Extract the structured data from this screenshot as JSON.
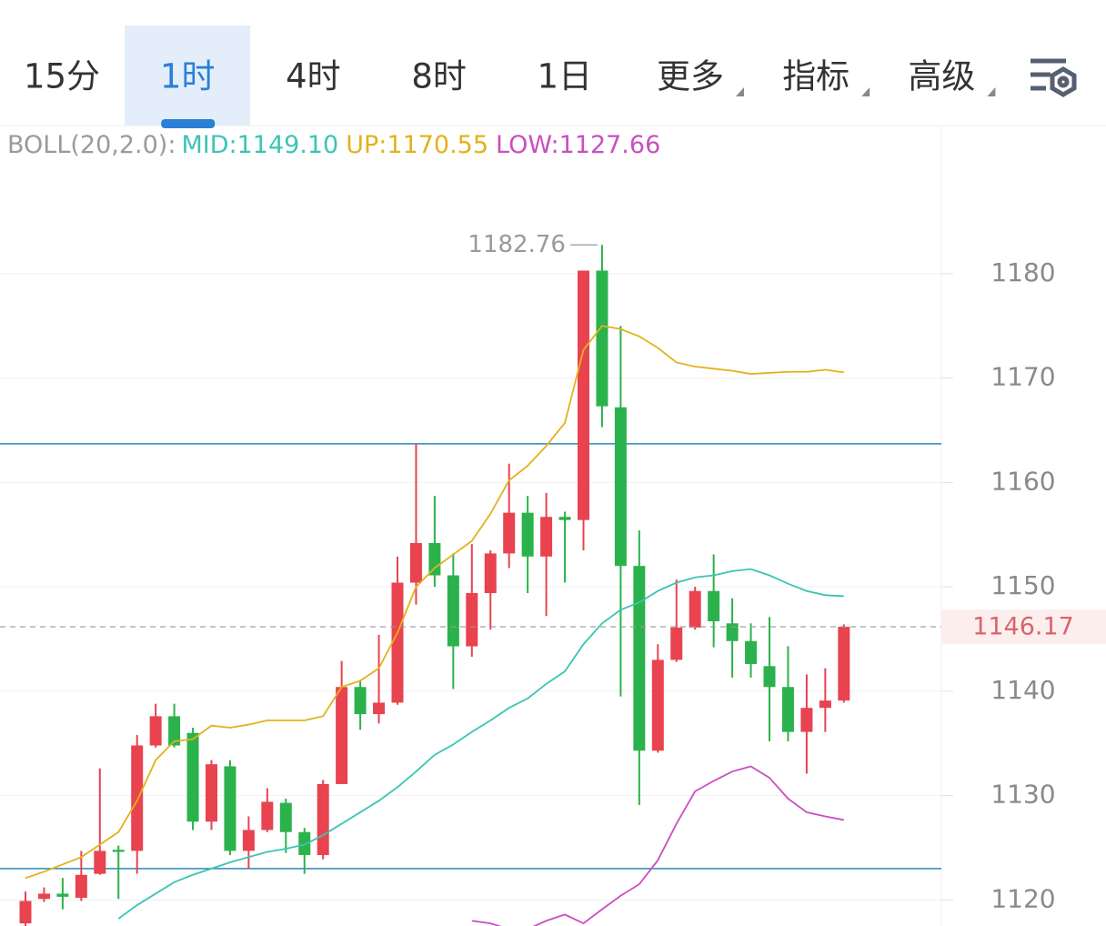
{
  "chart_data": {
    "type": "candlestick",
    "tabs": [
      {
        "label": "15分"
      },
      {
        "label": "1时"
      },
      {
        "label": "4时"
      },
      {
        "label": "8时"
      },
      {
        "label": "1日"
      },
      {
        "label": "更多",
        "dropdown": true
      },
      {
        "label": "指标",
        "dropdown": true
      },
      {
        "label": "高级",
        "dropdown": true
      }
    ],
    "active_tab": "1时",
    "indicator_label": "BOLL(20,2.0):",
    "up_color": "#e8434f",
    "down_color": "#2bb24c",
    "open": [
      1117.75,
      1120.1,
      1120.6,
      1120.2,
      1122.5,
      1124.8,
      1124.7,
      1134.8,
      1137.6,
      1136.0,
      1127.5,
      1132.8,
      1124.7,
      1126.7,
      1129.3,
      1126.5,
      1124.3,
      1131.1,
      1140.4,
      1137.8,
      1138.9,
      1150.4,
      1154.2,
      1151.1,
      1144.3,
      1149.4,
      1153.2,
      1157.1,
      1152.9,
      1156.7,
      1156.4,
      1180.3,
      1167.2,
      1152.0,
      1134.3,
      1143.0,
      1146.1,
      1149.6,
      1146.5,
      1144.8,
      1142.4,
      1140.4,
      1136.1,
      1138.4,
      1139.1
    ],
    "high": [
      1120.8,
      1121.2,
      1122.1,
      1124.7,
      1132.6,
      1125.2,
      1135.8,
      1138.8,
      1138.8,
      1136.5,
      1133.4,
      1133.4,
      1128.0,
      1130.7,
      1129.7,
      1126.9,
      1131.5,
      1142.9,
      1141.0,
      1145.4,
      1152.9,
      1163.7,
      1158.7,
      1153.2,
      1154.1,
      1153.5,
      1161.8,
      1158.7,
      1159.0,
      1157.2,
      1180.3,
      1182.76,
      1175.0,
      1155.4,
      1144.5,
      1150.7,
      1150.0,
      1153.1,
      1148.9,
      1146.5,
      1147.1,
      1144.3,
      1141.6,
      1142.2,
      1146.4
    ],
    "low": [
      1117.3,
      1119.8,
      1119.1,
      1119.9,
      1122.4,
      1120.1,
      1122.5,
      1134.6,
      1134.6,
      1126.7,
      1126.7,
      1124.3,
      1123.0,
      1126.5,
      1124.5,
      1122.5,
      1123.9,
      1131.1,
      1136.3,
      1136.9,
      1138.7,
      1148.3,
      1150.0,
      1140.2,
      1143.3,
      1145.9,
      1151.8,
      1149.4,
      1147.2,
      1150.4,
      1153.5,
      1165.3,
      1139.5,
      1129.1,
      1134.1,
      1142.8,
      1145.9,
      1144.2,
      1141.3,
      1141.3,
      1135.2,
      1135.2,
      1132.1,
      1136.1,
      1138.9
    ],
    "close": [
      1119.9,
      1120.6,
      1120.3,
      1122.4,
      1124.7,
      1124.6,
      1134.8,
      1137.6,
      1134.8,
      1127.5,
      1133.0,
      1124.7,
      1126.7,
      1129.4,
      1126.5,
      1124.3,
      1131.1,
      1140.4,
      1137.8,
      1138.9,
      1150.4,
      1154.2,
      1151.1,
      1144.3,
      1149.4,
      1153.2,
      1157.1,
      1152.9,
      1156.7,
      1156.4,
      1180.3,
      1167.3,
      1152.0,
      1134.3,
      1143.0,
      1146.1,
      1149.6,
      1146.7,
      1144.8,
      1142.6,
      1140.4,
      1136.1,
      1138.4,
      1139.1,
      1146.17
    ],
    "series": [
      {
        "name": "MID",
        "legend": "MID:1149.10",
        "color": "#3cc4b4",
        "values": [
          null,
          null,
          null,
          null,
          null,
          1118.2,
          1119.5,
          1120.6,
          1121.7,
          1122.4,
          1123.0,
          1123.6,
          1124.1,
          1124.6,
          1124.9,
          1125.3,
          1126.2,
          1127.3,
          1128.4,
          1129.5,
          1130.8,
          1132.3,
          1133.9,
          1134.9,
          1136.1,
          1137.2,
          1138.4,
          1139.3,
          1140.7,
          1141.9,
          1144.5,
          1146.5,
          1147.8,
          1148.5,
          1149.6,
          1150.4,
          1150.9,
          1151.1,
          1151.5,
          1151.7,
          1151.1,
          1150.3,
          1149.6,
          1149.2,
          1149.1
        ]
      },
      {
        "name": "UP",
        "legend": "UP:1170.55",
        "color": "#e3b21b",
        "values": [
          1122.1,
          1122.7,
          1123.4,
          1124.1,
          1125.3,
          1126.5,
          1129.5,
          1133.4,
          1135.2,
          1135.4,
          1136.7,
          1136.5,
          1136.8,
          1137.2,
          1137.2,
          1137.2,
          1137.6,
          1140.4,
          1141.0,
          1142.2,
          1145.6,
          1150.0,
          1151.8,
          1153.1,
          1154.4,
          1157.0,
          1160.2,
          1161.6,
          1163.5,
          1165.7,
          1172.7,
          1175.0,
          1174.7,
          1174.0,
          1172.9,
          1171.5,
          1171.1,
          1170.9,
          1170.7,
          1170.4,
          1170.5,
          1170.6,
          1170.6,
          1170.8,
          1170.55
        ]
      },
      {
        "name": "LOW",
        "legend": "LOW:1127.66",
        "color": "#c94fc0",
        "values": [
          null,
          null,
          null,
          null,
          null,
          null,
          null,
          null,
          null,
          null,
          null,
          null,
          null,
          null,
          null,
          null,
          null,
          null,
          null,
          null,
          null,
          null,
          null,
          null,
          1118.0,
          1117.75,
          1117.2,
          1117.2,
          1118.0,
          1118.6,
          1117.75,
          1119.1,
          1120.4,
          1121.5,
          1123.8,
          1127.3,
          1130.4,
          1131.4,
          1132.3,
          1132.8,
          1131.7,
          1129.7,
          1128.4,
          1128.0,
          1127.66
        ]
      }
    ],
    "hlines": [
      {
        "value": 1163.7,
        "color": "#2a8ab3"
      },
      {
        "value": 1123.0,
        "color": "#2a8ab3"
      }
    ],
    "last_price": 1146.17,
    "high_label": 1182.76,
    "ylim": [
      1117.5,
      1194.2
    ],
    "yticks": [
      1120,
      1130,
      1140,
      1150,
      1160,
      1170,
      1180
    ],
    "grid": true
  }
}
